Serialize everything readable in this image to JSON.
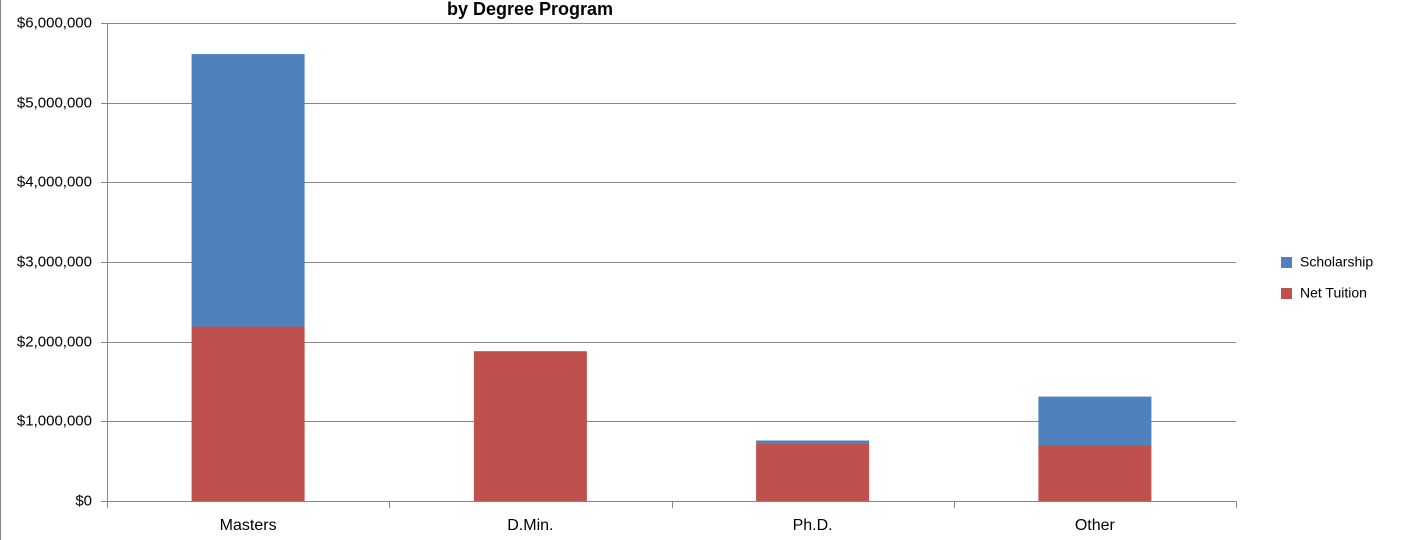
{
  "chart_data": {
    "type": "bar",
    "stacked": true,
    "title": "",
    "title_partial_visible": "by Degree Program",
    "xlabel": "",
    "ylabel": "",
    "categories": [
      "Masters",
      "D.Min.",
      "Ph.D.",
      "Other"
    ],
    "series": [
      {
        "name": "Net Tuition",
        "color": "#c0504d",
        "values": [
          2190000,
          1880000,
          720000,
          690000
        ]
      },
      {
        "name": "Scholarship",
        "color": "#4f81bd",
        "values": [
          3420000,
          0,
          40000,
          620000
        ]
      }
    ],
    "ylim": [
      0,
      6000000
    ],
    "yticks": [
      0,
      1000000,
      2000000,
      3000000,
      4000000,
      5000000,
      6000000
    ],
    "ytick_labels": [
      "$0",
      "$1,000,000",
      "$2,000,000",
      "$3,000,000",
      "$4,000,000",
      "$5,000,000",
      "$6,000,000"
    ],
    "legend": {
      "placement": "right",
      "order": [
        "Scholarship",
        "Net Tuition"
      ]
    },
    "grid": true,
    "grid_color": "#868686"
  }
}
